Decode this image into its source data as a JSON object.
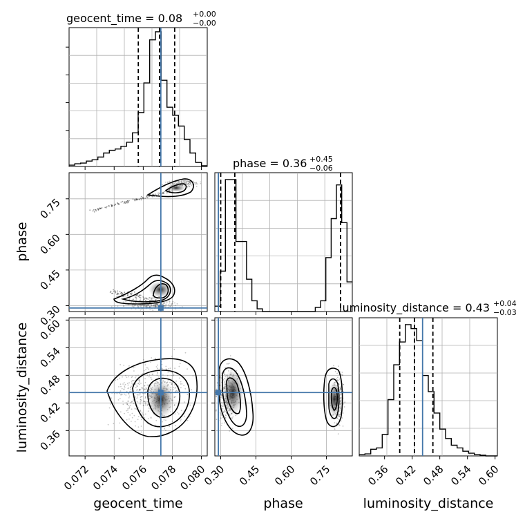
{
  "chart_data": {
    "type": "corner",
    "parameters": [
      "geocent_time",
      "phase",
      "luminosity_distance"
    ],
    "titles": [
      {
        "param": "geocent_time",
        "label": "geocent_time = ",
        "median": "0.08",
        "plus": "+0.00",
        "minus": "−0.00"
      },
      {
        "param": "phase",
        "label": "phase = ",
        "median": "0.36",
        "plus": "+0.45",
        "minus": "−0.06"
      },
      {
        "param": "luminosity_distance",
        "label": "luminosity_distance = ",
        "median": "0.43",
        "plus": "+0.04",
        "minus": "−0.03"
      }
    ],
    "ranges": {
      "geocent_time": [
        0.0709,
        0.0804
      ],
      "phase": [
        0.275,
        0.86
      ],
      "luminosity_distance": [
        0.305,
        0.605
      ]
    },
    "ticks": {
      "geocent_time": [
        "0.072",
        "0.074",
        "0.076",
        "0.078",
        "0.080"
      ],
      "phase": [
        "0.30",
        "0.45",
        "0.60",
        "0.75"
      ],
      "luminosity_distance": [
        "0.36",
        "0.42",
        "0.48",
        "0.54",
        "0.60"
      ]
    },
    "truths": {
      "geocent_time": 0.07721,
      "phase": 0.29,
      "luminosity_distance": 0.4426
    },
    "quantiles": {
      "geocent_time": [
        0.07566,
        0.07712,
        0.07816
      ],
      "phase": [
        0.3,
        0.36,
        0.81
      ],
      "luminosity_distance": [
        0.393,
        0.425,
        0.465
      ]
    },
    "histograms": {
      "geocent_time": [
        0.01,
        0.02,
        0.025,
        0.04,
        0.05,
        0.07,
        0.1,
        0.12,
        0.13,
        0.15,
        0.18,
        0.25,
        0.4,
        0.62,
        0.94,
        1.0,
        0.64,
        0.44,
        0.38,
        0.3,
        0.2,
        0.1,
        0.03,
        0.005
      ],
      "phase": [
        0.04,
        0.3,
        0.98,
        0.98,
        0.52,
        0.52,
        0.24,
        0.08,
        0.02,
        0,
        0,
        0,
        0,
        0,
        0,
        0,
        0,
        0,
        0,
        0.03,
        0.08,
        0.4,
        0.69,
        0.94,
        0.66,
        0.22
      ],
      "luminosity_distance": [
        0.01,
        0.015,
        0.05,
        0.06,
        0.16,
        0.42,
        0.68,
        0.85,
        0.98,
        0.95,
        0.86,
        0.6,
        0.48,
        0.32,
        0.2,
        0.13,
        0.08,
        0.06,
        0.035,
        0.02,
        0.01,
        0.005,
        0,
        0
      ]
    },
    "grid": true,
    "grid_lines": 5,
    "grid_lines_diag": 5
  }
}
